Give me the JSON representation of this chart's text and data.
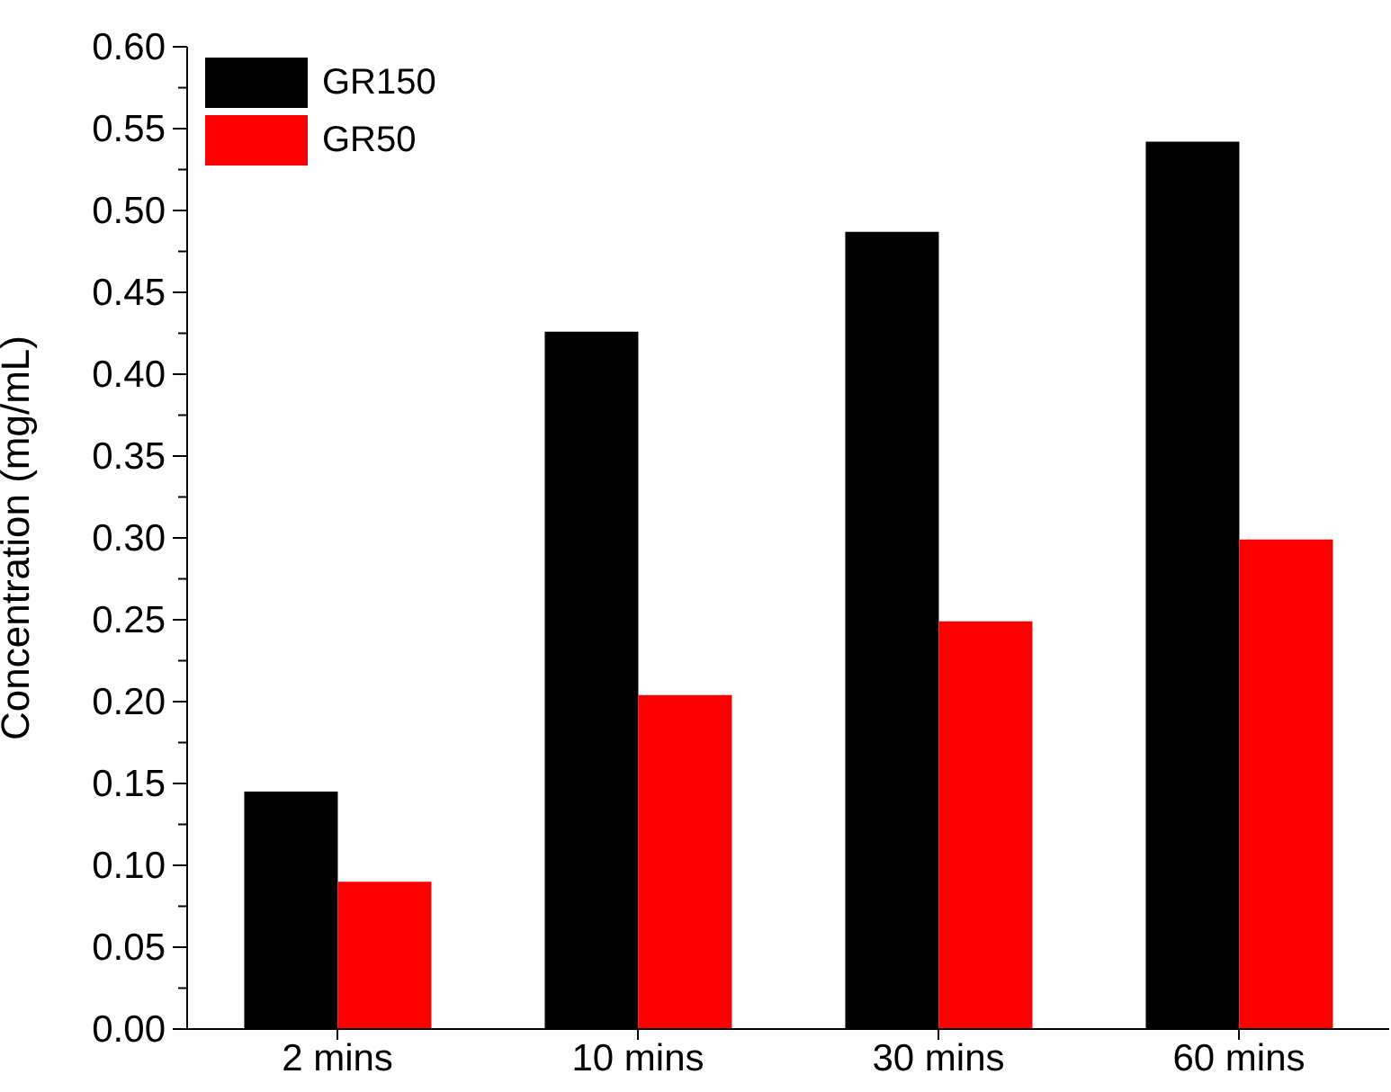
{
  "chart_data": {
    "type": "bar",
    "ylabel": "Concentration (mg/mL)",
    "categories": [
      "2 mins",
      "10 mins",
      "30 mins",
      "60 mins"
    ],
    "series": [
      {
        "name": "GR150",
        "color": "#000000",
        "values": [
          0.145,
          0.426,
          0.487,
          0.542
        ]
      },
      {
        "name": "GR50",
        "color": "#ff0000",
        "values": [
          0.09,
          0.204,
          0.249,
          0.299
        ]
      }
    ],
    "ylim": [
      0,
      0.6
    ],
    "yticks": [
      {
        "value": 0,
        "label": "0.00"
      },
      {
        "value": 0.025,
        "label": null
      },
      {
        "value": 0.05,
        "label": "0.05"
      },
      {
        "value": 0.075,
        "label": null
      },
      {
        "value": 0.1,
        "label": "0.10"
      },
      {
        "value": 0.125,
        "label": null
      },
      {
        "value": 0.15,
        "label": "0.15"
      },
      {
        "value": 0.175,
        "label": null
      },
      {
        "value": 0.2,
        "label": "0.20"
      },
      {
        "value": 0.225,
        "label": null
      },
      {
        "value": 0.25,
        "label": "0.25"
      },
      {
        "value": 0.275,
        "label": null
      },
      {
        "value": 0.3,
        "label": "0.30"
      },
      {
        "value": 0.325,
        "label": null
      },
      {
        "value": 0.35,
        "label": "0.35"
      },
      {
        "value": 0.375,
        "label": null
      },
      {
        "value": 0.4,
        "label": "0.40"
      },
      {
        "value": 0.425,
        "label": null
      },
      {
        "value": 0.45,
        "label": "0.45"
      },
      {
        "value": 0.475,
        "label": null
      },
      {
        "value": 0.5,
        "label": "0.50"
      },
      {
        "value": 0.525,
        "label": null
      },
      {
        "value": 0.55,
        "label": "0.55"
      },
      {
        "value": 0.575,
        "label": null
      },
      {
        "value": 0.6,
        "label": "0.60"
      }
    ],
    "grid": false,
    "legend": "top left"
  }
}
